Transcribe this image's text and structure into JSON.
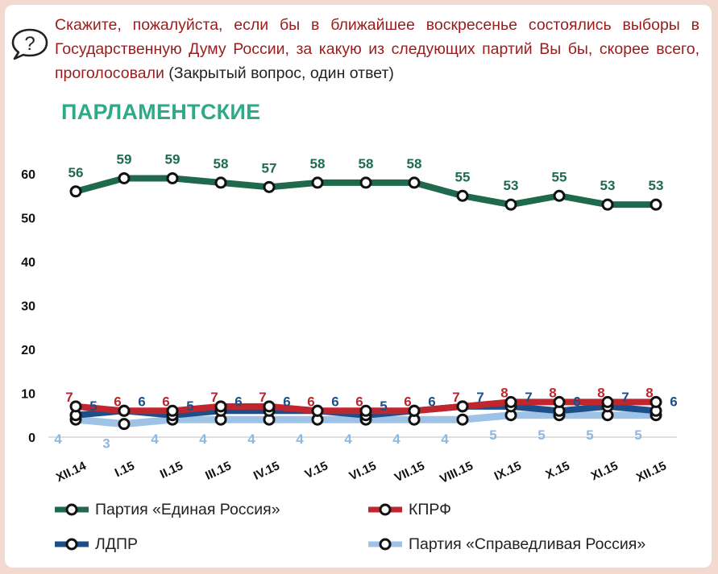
{
  "question": {
    "text": "Скажите, пожалуйста, если бы в ближайшее воскресенье состоялись выборы в Государственную Думу России, за какую из следующих партий Вы бы, скорее всего, проголосовали",
    "note": "(Закрытый вопрос, один ответ)"
  },
  "section_title": "ПАРЛАМЕНТСКИЕ",
  "icon": "question-bubble-icon",
  "colors": {
    "title": "#2eaa86",
    "question": "#9b1c1c",
    "er": "#1f6a4c",
    "er_label": "#1f6a4c",
    "kprf": "#c0262d",
    "kprf_label": "#b5282d",
    "ldpr": "#1c4f8a",
    "ldpr_label": "#1c4f8a",
    "sr": "#9fc3e6",
    "sr_label": "#8fb8e0"
  },
  "chart_data": {
    "type": "line",
    "categories": [
      "XII.14",
      "I.15",
      "II.15",
      "III.15",
      "IV.15",
      "V.15",
      "VI.15",
      "VII.15",
      "VIII.15",
      "IX.15",
      "X.15",
      "XI.15",
      "XII.15"
    ],
    "ylim": [
      0,
      60
    ],
    "yticks": [
      0,
      10,
      20,
      30,
      40,
      50,
      60
    ],
    "xlabel": "",
    "ylabel": "",
    "series": [
      {
        "key": "er",
        "name": "Партия «Единая Россия»",
        "values": [
          56,
          59,
          59,
          58,
          57,
          58,
          58,
          58,
          55,
          53,
          55,
          53,
          53
        ]
      },
      {
        "key": "kprf",
        "name": "КПРФ",
        "values": [
          7,
          6,
          6,
          7,
          7,
          6,
          6,
          6,
          7,
          8,
          8,
          8,
          8
        ]
      },
      {
        "key": "ldpr",
        "name": "ЛДПР",
        "values": [
          5,
          6,
          5,
          6,
          6,
          6,
          5,
          6,
          7,
          7,
          6,
          7,
          6
        ]
      },
      {
        "key": "sr",
        "name": "Партия «Справедливая Россия»",
        "values": [
          4,
          3,
          4,
          4,
          4,
          4,
          4,
          4,
          4,
          5,
          5,
          5,
          5
        ]
      }
    ]
  }
}
